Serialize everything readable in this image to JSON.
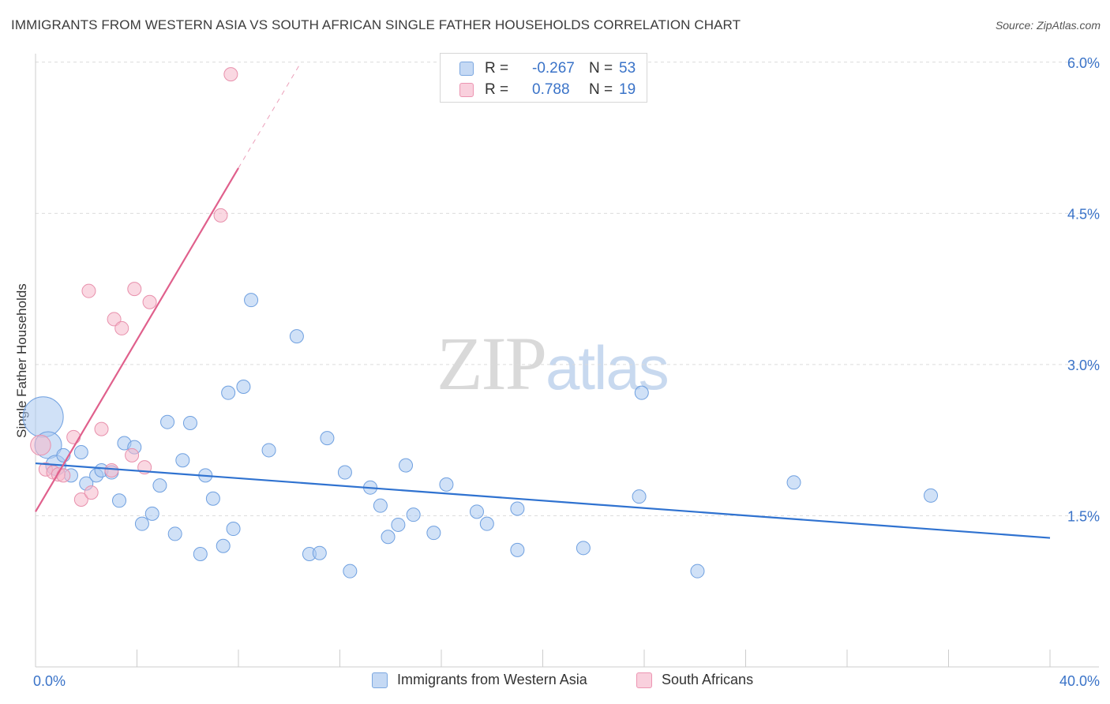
{
  "title": "IMMIGRANTS FROM WESTERN ASIA VS SOUTH AFRICAN SINGLE FATHER HOUSEHOLDS CORRELATION CHART",
  "source": "Source: ZipAtlas.com",
  "watermark": {
    "zip": "ZIP",
    "atlas": "atlas"
  },
  "legend_top": {
    "rows": [
      {
        "r_label": "R =",
        "r_value": "-0.267",
        "n_label": "N =",
        "n_value": "53",
        "color": "#aac8f0"
      },
      {
        "r_label": "R =",
        "r_value": "0.788",
        "n_label": "N =",
        "n_value": "19",
        "color": "#f5b8cb"
      }
    ]
  },
  "legend_bottom": {
    "items": [
      {
        "label": "Immigrants from Western Asia",
        "color": "#aac8f0"
      },
      {
        "label": "South Africans",
        "color": "#f5b8cb"
      }
    ]
  },
  "chart_data": {
    "type": "scatter",
    "title": "IMMIGRANTS FROM WESTERN ASIA VS SOUTH AFRICAN SINGLE FATHER HOUSEHOLDS CORRELATION CHART",
    "xlabel": "",
    "ylabel": "Single Father Households",
    "xlim": [
      0,
      40
    ],
    "ylim": [
      0.0,
      6.15
    ],
    "x_tick_labels": [
      "0.0%",
      "40.0%"
    ],
    "y_ticks": [
      1.5,
      3.0,
      4.5,
      6.0
    ],
    "y_tick_labels": [
      "1.5%",
      "3.0%",
      "4.5%",
      "6.0%"
    ],
    "grid": true,
    "series": [
      {
        "name": "Immigrants from Western Asia",
        "color": "#6fa0e0",
        "fill": "#aac8f0",
        "trend": {
          "x0": 0,
          "y0": 2.02,
          "x1": 40,
          "y1": 1.28,
          "color": "#2f72d0"
        },
        "points": [
          [
            0.3,
            2.48,
            3
          ],
          [
            0.5,
            2.2,
            2
          ],
          [
            0.8,
            2.0,
            1.5
          ],
          [
            1.1,
            2.1,
            1
          ],
          [
            1.4,
            1.9,
            1
          ],
          [
            1.8,
            2.13,
            1
          ],
          [
            2.0,
            1.82,
            1
          ],
          [
            2.4,
            1.9,
            1
          ],
          [
            2.6,
            1.95,
            1
          ],
          [
            3.0,
            1.93,
            1
          ],
          [
            3.3,
            1.65,
            1
          ],
          [
            3.5,
            2.22,
            1
          ],
          [
            3.9,
            2.18,
            1
          ],
          [
            4.2,
            1.42,
            1
          ],
          [
            4.6,
            1.52,
            1
          ],
          [
            4.9,
            1.8,
            1
          ],
          [
            5.2,
            2.43,
            1
          ],
          [
            5.5,
            1.32,
            1
          ],
          [
            5.8,
            2.05,
            1
          ],
          [
            6.1,
            2.42,
            1
          ],
          [
            6.5,
            1.12,
            1
          ],
          [
            6.7,
            1.9,
            1
          ],
          [
            7.0,
            1.67,
            1
          ],
          [
            7.4,
            1.2,
            1
          ],
          [
            7.6,
            2.72,
            1
          ],
          [
            7.8,
            1.37,
            1
          ],
          [
            8.2,
            2.78,
            1
          ],
          [
            8.5,
            3.64,
            1
          ],
          [
            9.2,
            2.15,
            1
          ],
          [
            10.3,
            3.28,
            1
          ],
          [
            10.8,
            1.12,
            1
          ],
          [
            11.2,
            1.13,
            1
          ],
          [
            11.5,
            2.27,
            1
          ],
          [
            12.2,
            1.93,
            1
          ],
          [
            12.4,
            0.95,
            1
          ],
          [
            13.2,
            1.78,
            1
          ],
          [
            13.6,
            1.6,
            1
          ],
          [
            13.9,
            1.29,
            1
          ],
          [
            14.3,
            1.41,
            1
          ],
          [
            14.6,
            2.0,
            1
          ],
          [
            14.9,
            1.51,
            1
          ],
          [
            15.7,
            1.33,
            1
          ],
          [
            16.2,
            1.81,
            1
          ],
          [
            17.4,
            1.54,
            1
          ],
          [
            17.8,
            1.42,
            1
          ],
          [
            19.0,
            1.16,
            1
          ],
          [
            19.0,
            1.57,
            1
          ],
          [
            21.6,
            1.18,
            1
          ],
          [
            23.8,
            1.69,
            1
          ],
          [
            23.9,
            2.72,
            1
          ],
          [
            26.1,
            0.95,
            1
          ],
          [
            29.9,
            1.83,
            1
          ],
          [
            35.3,
            1.7,
            1
          ]
        ]
      },
      {
        "name": "South Africans",
        "color": "#e890ac",
        "fill": "#f5b8cb",
        "trend": {
          "x0": 0,
          "y0": 1.54,
          "x1": 8.0,
          "y1": 4.95,
          "x_dash_end": 10.4,
          "y_dash_end": 5.97,
          "color": "#e0608c"
        },
        "points": [
          [
            0.2,
            2.2,
            1.5
          ],
          [
            0.4,
            1.96,
            1
          ],
          [
            0.7,
            1.93,
            1
          ],
          [
            0.9,
            1.91,
            1
          ],
          [
            1.1,
            1.9,
            1
          ],
          [
            1.5,
            2.28,
            1
          ],
          [
            1.8,
            1.66,
            1
          ],
          [
            2.1,
            3.73,
            1
          ],
          [
            2.2,
            1.73,
            1
          ],
          [
            2.6,
            2.36,
            1
          ],
          [
            3.0,
            1.95,
            1
          ],
          [
            3.1,
            3.45,
            1
          ],
          [
            3.4,
            3.36,
            1
          ],
          [
            3.8,
            2.1,
            1
          ],
          [
            3.9,
            3.75,
            1
          ],
          [
            4.3,
            1.98,
            1
          ],
          [
            4.5,
            3.62,
            1
          ],
          [
            7.3,
            4.48,
            1
          ],
          [
            7.7,
            5.88,
            1
          ]
        ]
      }
    ]
  }
}
